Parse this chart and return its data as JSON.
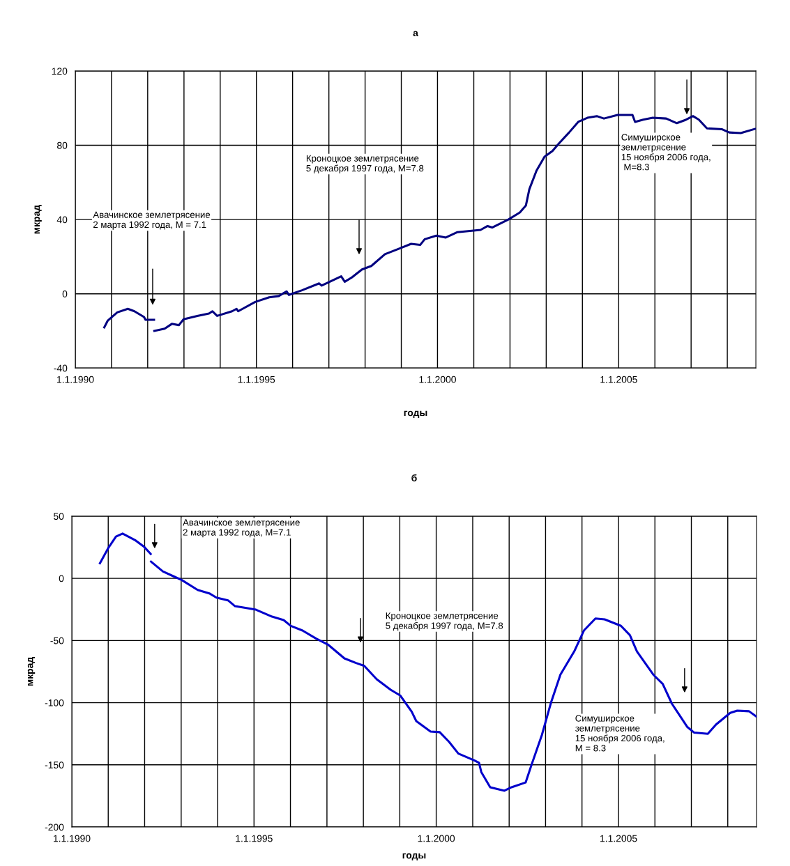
{
  "chart_data": [
    {
      "type": "line",
      "title": "а",
      "xlabel": "годы",
      "ylabel": "мкрад",
      "grid": true,
      "marker": "none",
      "line_style": "solid",
      "xlim": [
        "1990-01-01",
        "2008-10-15"
      ],
      "ylim": [
        -40,
        120
      ],
      "yticks": [
        -40,
        0,
        40,
        80,
        120
      ],
      "xticks": [
        {
          "value": "1990-01-01",
          "label": "1.1.1990"
        },
        {
          "value": "1991-01-01",
          "label": null
        },
        {
          "value": "1992-01-01",
          "label": null
        },
        {
          "value": "1993-01-01",
          "label": null
        },
        {
          "value": "1994-01-01",
          "label": null
        },
        {
          "value": "1995-01-01",
          "label": "1.1.1995"
        },
        {
          "value": "1996-01-01",
          "label": null
        },
        {
          "value": "1997-01-01",
          "label": null
        },
        {
          "value": "1998-01-01",
          "label": null
        },
        {
          "value": "1999-01-01",
          "label": null
        },
        {
          "value": "2000-01-01",
          "label": "1.1.2000"
        },
        {
          "value": "2001-01-01",
          "label": null
        },
        {
          "value": "2002-01-01",
          "label": null
        },
        {
          "value": "2003-01-01",
          "label": null
        },
        {
          "value": "2004-01-01",
          "label": null
        },
        {
          "value": "2005-01-01",
          "label": "1.1.2005"
        },
        {
          "value": "2006-01-01",
          "label": null
        },
        {
          "value": "2007-01-01",
          "label": null
        },
        {
          "value": "2008-01-01",
          "label": null
        }
      ],
      "annotations": [
        "Авачинское землетрясение\n2 марта 1992 года, М = 7.1",
        "Кроноцкое землетрясение\n5 декабря 1997 года, М=7.8",
        "Симуширское\nземлетрясение\n15 ноября 2006 года,\n М=8.3"
      ],
      "series": [
        {
          "color": "#000080",
          "x": [
            "1990-10-20",
            "1990-11-25",
            "1991-02-28",
            "1991-06-15",
            "1991-08-20",
            "1991-11-25",
            "1991-12-10",
            "1992-03-05",
            "1992-03-06",
            "1992-03-08",
            "1992-06-20",
            "1992-09-01",
            "1992-11-10",
            "1992-12-28",
            "1993-05-15",
            "1993-09-10",
            "1993-10-15",
            "1993-12-01",
            "1994-05-01",
            "1994-06-15",
            "1994-07-01",
            "1994-12-20",
            "1995-05-10",
            "1995-08-15",
            "1995-11-01",
            "1995-11-25",
            "1996-04-05",
            "1996-09-25",
            "1996-10-20",
            "1997-05-05",
            "1997-06-10",
            "1997-08-20",
            "1997-12-01",
            "1998-03-05",
            "1998-07-20",
            "1998-12-15",
            "1999-04-10",
            "1999-07-10",
            "1999-08-25",
            "1999-12-20",
            "2000-03-25",
            "2000-07-20",
            "2001-03-10",
            "2001-05-20",
            "2001-07-05",
            "2001-12-15",
            "2002-04-10",
            "2002-06-10",
            "2002-07-15",
            "2002-09-25",
            "2002-12-15",
            "2003-03-05",
            "2003-05-15",
            "2003-08-20",
            "2003-11-20",
            "2004-02-20",
            "2004-05-25",
            "2004-08-05",
            "2004-12-20",
            "2005-05-20",
            "2005-06-15",
            "2005-09-05",
            "2005-12-10",
            "2006-04-25",
            "2006-08-10",
            "2006-10-30",
            "2007-01-20",
            "2007-03-20",
            "2007-06-10",
            "2007-11-10",
            "2008-01-20",
            "2008-05-15",
            "2008-10-05"
          ],
          "values": [
            -18.1,
            -14.4,
            -10,
            -8.1,
            -9.4,
            -12.5,
            -14,
            -14,
            null,
            -20,
            -18.8,
            -16.2,
            -16.9,
            -13.7,
            -11.9,
            -10.6,
            -9.4,
            -11.9,
            -9.4,
            -8.1,
            -9.4,
            -4.4,
            -1.9,
            -1.2,
            1.3,
            -0.6,
            1.9,
            5.6,
            4.4,
            9.4,
            6.5,
            8.8,
            13.1,
            15,
            21.3,
            24.4,
            26.9,
            26.3,
            29.4,
            31.3,
            30.3,
            33.2,
            34.4,
            36.5,
            35.7,
            40,
            43.8,
            47.5,
            56.3,
            66.3,
            73.8,
            76.9,
            81.3,
            86.9,
            92.6,
            94.8,
            95.7,
            94.4,
            96.3,
            96.3,
            92.6,
            93.8,
            94.8,
            94.4,
            91.9,
            93.5,
            95.7,
            93.8,
            89.1,
            88.6,
            86.9,
            86.6,
            88.8
          ]
        }
      ]
    },
    {
      "type": "line",
      "title": "б",
      "xlabel": "годы",
      "ylabel": "мкрад",
      "grid": true,
      "marker": "none",
      "line_style": "solid",
      "xlim": [
        "1990-01-01",
        "2008-10-15"
      ],
      "ylim": [
        -200,
        50
      ],
      "yticks": [
        -200,
        -150,
        -100,
        -50,
        0,
        50
      ],
      "xticks": [
        {
          "value": "1990-01-01",
          "label": "1.1.1990"
        },
        {
          "value": "1991-01-01",
          "label": null
        },
        {
          "value": "1992-01-01",
          "label": null
        },
        {
          "value": "1993-01-01",
          "label": null
        },
        {
          "value": "1994-01-01",
          "label": null
        },
        {
          "value": "1995-01-01",
          "label": "1.1.1995"
        },
        {
          "value": "1996-01-01",
          "label": null
        },
        {
          "value": "1997-01-01",
          "label": null
        },
        {
          "value": "1998-01-01",
          "label": null
        },
        {
          "value": "1999-01-01",
          "label": null
        },
        {
          "value": "2000-01-01",
          "label": "1.1.2000"
        },
        {
          "value": "2001-01-01",
          "label": null
        },
        {
          "value": "2002-01-01",
          "label": null
        },
        {
          "value": "2003-01-01",
          "label": null
        },
        {
          "value": "2004-01-01",
          "label": null
        },
        {
          "value": "2005-01-01",
          "label": "1.1.2005"
        },
        {
          "value": "2006-01-01",
          "label": null
        },
        {
          "value": "2007-01-01",
          "label": null
        },
        {
          "value": "2008-01-01",
          "label": null
        }
      ],
      "annotations": [
        "Авачинское землетрясение\n2 марта 1992 года, М=7.1",
        "Кроноцкое землетрясение\n5 декабря 1997 года, М=7.8",
        "Симуширское\nземлетрясение\n15 ноября 2006 года,\nМ = 8.3"
      ],
      "series": [
        {
          "color": "#0000cc",
          "x": [
            "1990-10-10",
            "1991-01-01",
            "1991-03-20",
            "1991-05-25",
            "1991-09-25",
            "1991-12-28",
            "1992-03-01",
            "1992-03-03",
            "1992-03-05",
            "1992-07-01",
            "1992-10-25",
            "1993-01-05",
            "1993-06-15",
            "1993-10-10",
            "1993-12-20",
            "1994-04-15",
            "1994-06-25",
            "1995-01-20",
            "1995-07-01",
            "1995-10-25",
            "1996-01-05",
            "1996-05-01",
            "1996-09-15",
            "1997-01-10",
            "1997-06-25",
            "1997-10-20",
            "1998-01-10",
            "1998-05-15",
            "1998-10-01",
            "1999-01-05",
            "1999-05-01",
            "1999-06-15",
            "1999-11-05",
            "2000-02-05",
            "2000-05-10",
            "2000-08-10",
            "2001-01-20",
            "2001-03-05",
            "2001-03-28",
            "2001-06-25",
            "2001-11-15",
            "2002-01-25",
            "2002-06-15",
            "2002-08-20",
            "2002-11-25",
            "2003-02-25",
            "2003-05-30",
            "2003-10-15",
            "2004-01-20",
            "2004-05-15",
            "2004-08-15",
            "2005-01-25",
            "2005-04-25",
            "2005-07-05",
            "2005-12-15",
            "2006-03-20",
            "2006-06-20",
            "2006-11-20",
            "2007-01-30",
            "2007-06-15",
            "2007-09-05",
            "2008-01-25",
            "2008-04-05",
            "2008-08-01",
            "2008-10-10"
          ],
          "values": [
            12.1,
            24.3,
            33.6,
            36,
            30.8,
            25.2,
            19.6,
            null,
            13.4,
            5.6,
            1.3,
            -1.3,
            -9.3,
            -12.1,
            -15.5,
            -17.7,
            -22.4,
            -25.2,
            -30.8,
            -33.6,
            -38.3,
            -42,
            -48.5,
            -53.2,
            -64.4,
            -68.1,
            -70.4,
            -81.2,
            -89.6,
            -94.2,
            -107.3,
            -114.8,
            -123.2,
            -123.7,
            -131.6,
            -140.9,
            -146.5,
            -148.4,
            -155.8,
            -168,
            -170.8,
            -168,
            -164.2,
            -148.4,
            -126,
            -99.8,
            -77.4,
            -58.8,
            -42,
            -32.3,
            -33,
            -38.2,
            -45.7,
            -58.8,
            -77.4,
            -84.9,
            -100.8,
            -119.4,
            -124.1,
            -125,
            -117.6,
            -108.2,
            -106.4,
            -106.9,
            -111
          ]
        }
      ]
    }
  ]
}
